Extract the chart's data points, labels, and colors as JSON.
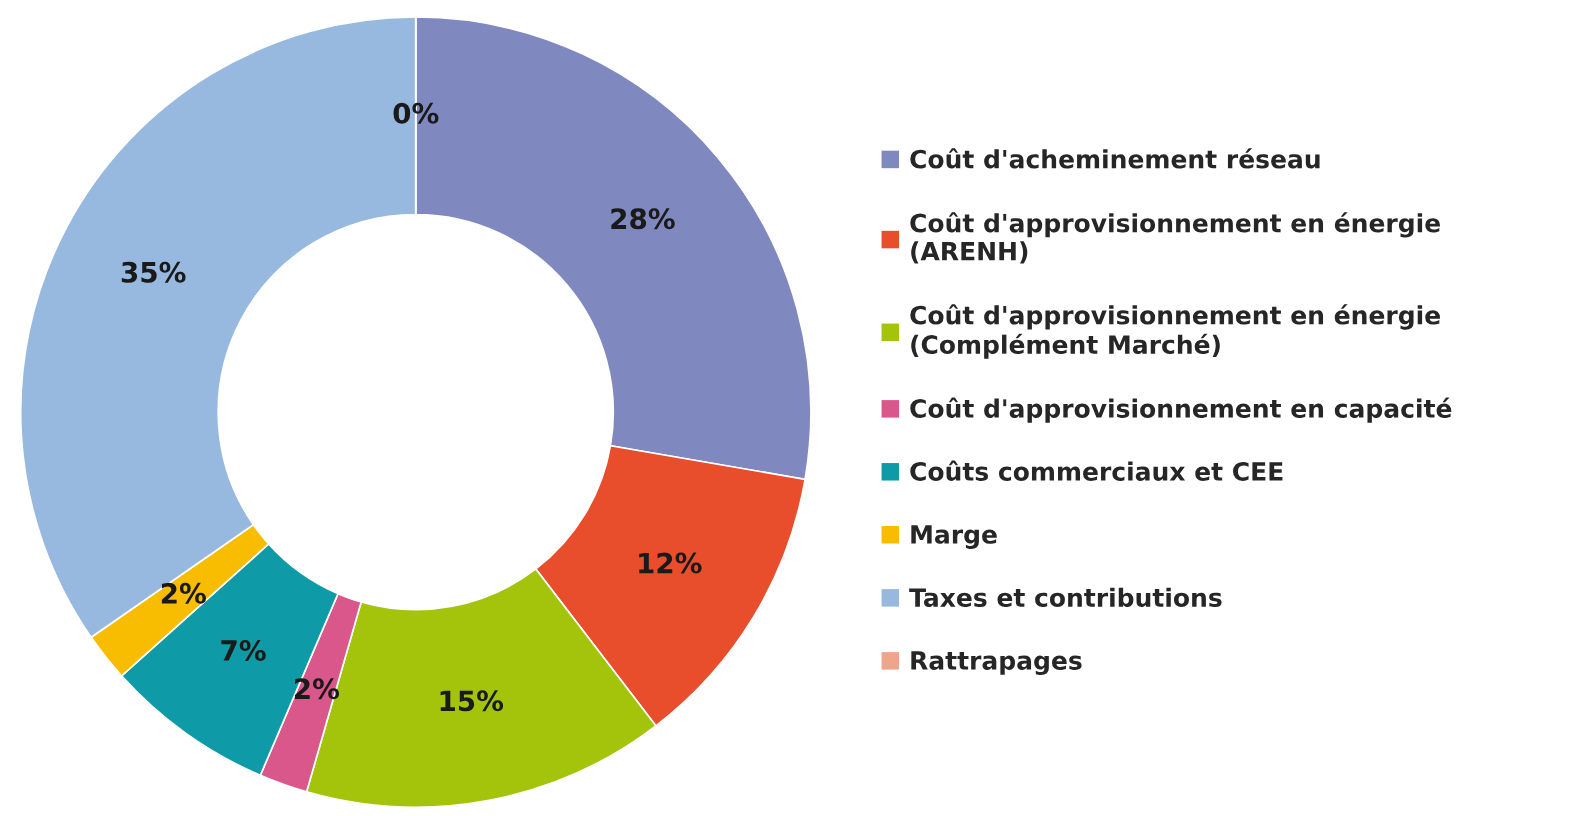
{
  "chart_data": {
    "type": "donut",
    "categories": [
      "Coût d'acheminement réseau",
      "Coût d'approvisionnement en énergie\n(ARENH)",
      "Coût d'approvisionnement en énergie\n(Complément Marché)",
      "Coût d'approvisionnement en capacité",
      "Coûts commerciaux et CEE",
      "Marge",
      "Taxes et contributions",
      "Rattrapages"
    ],
    "values": [
      28,
      12,
      15,
      2,
      7,
      2,
      35,
      0
    ],
    "value_labels": [
      "28%",
      "12%",
      "15%",
      "2%",
      "7%",
      "2%",
      "35%",
      "0%"
    ],
    "colors": [
      "#8088c0",
      "#e84e2c",
      "#a4c40c",
      "#d9578a",
      "#0e9aa6",
      "#f8bc00",
      "#97b8df",
      "#eea58c"
    ],
    "legend": "right"
  }
}
